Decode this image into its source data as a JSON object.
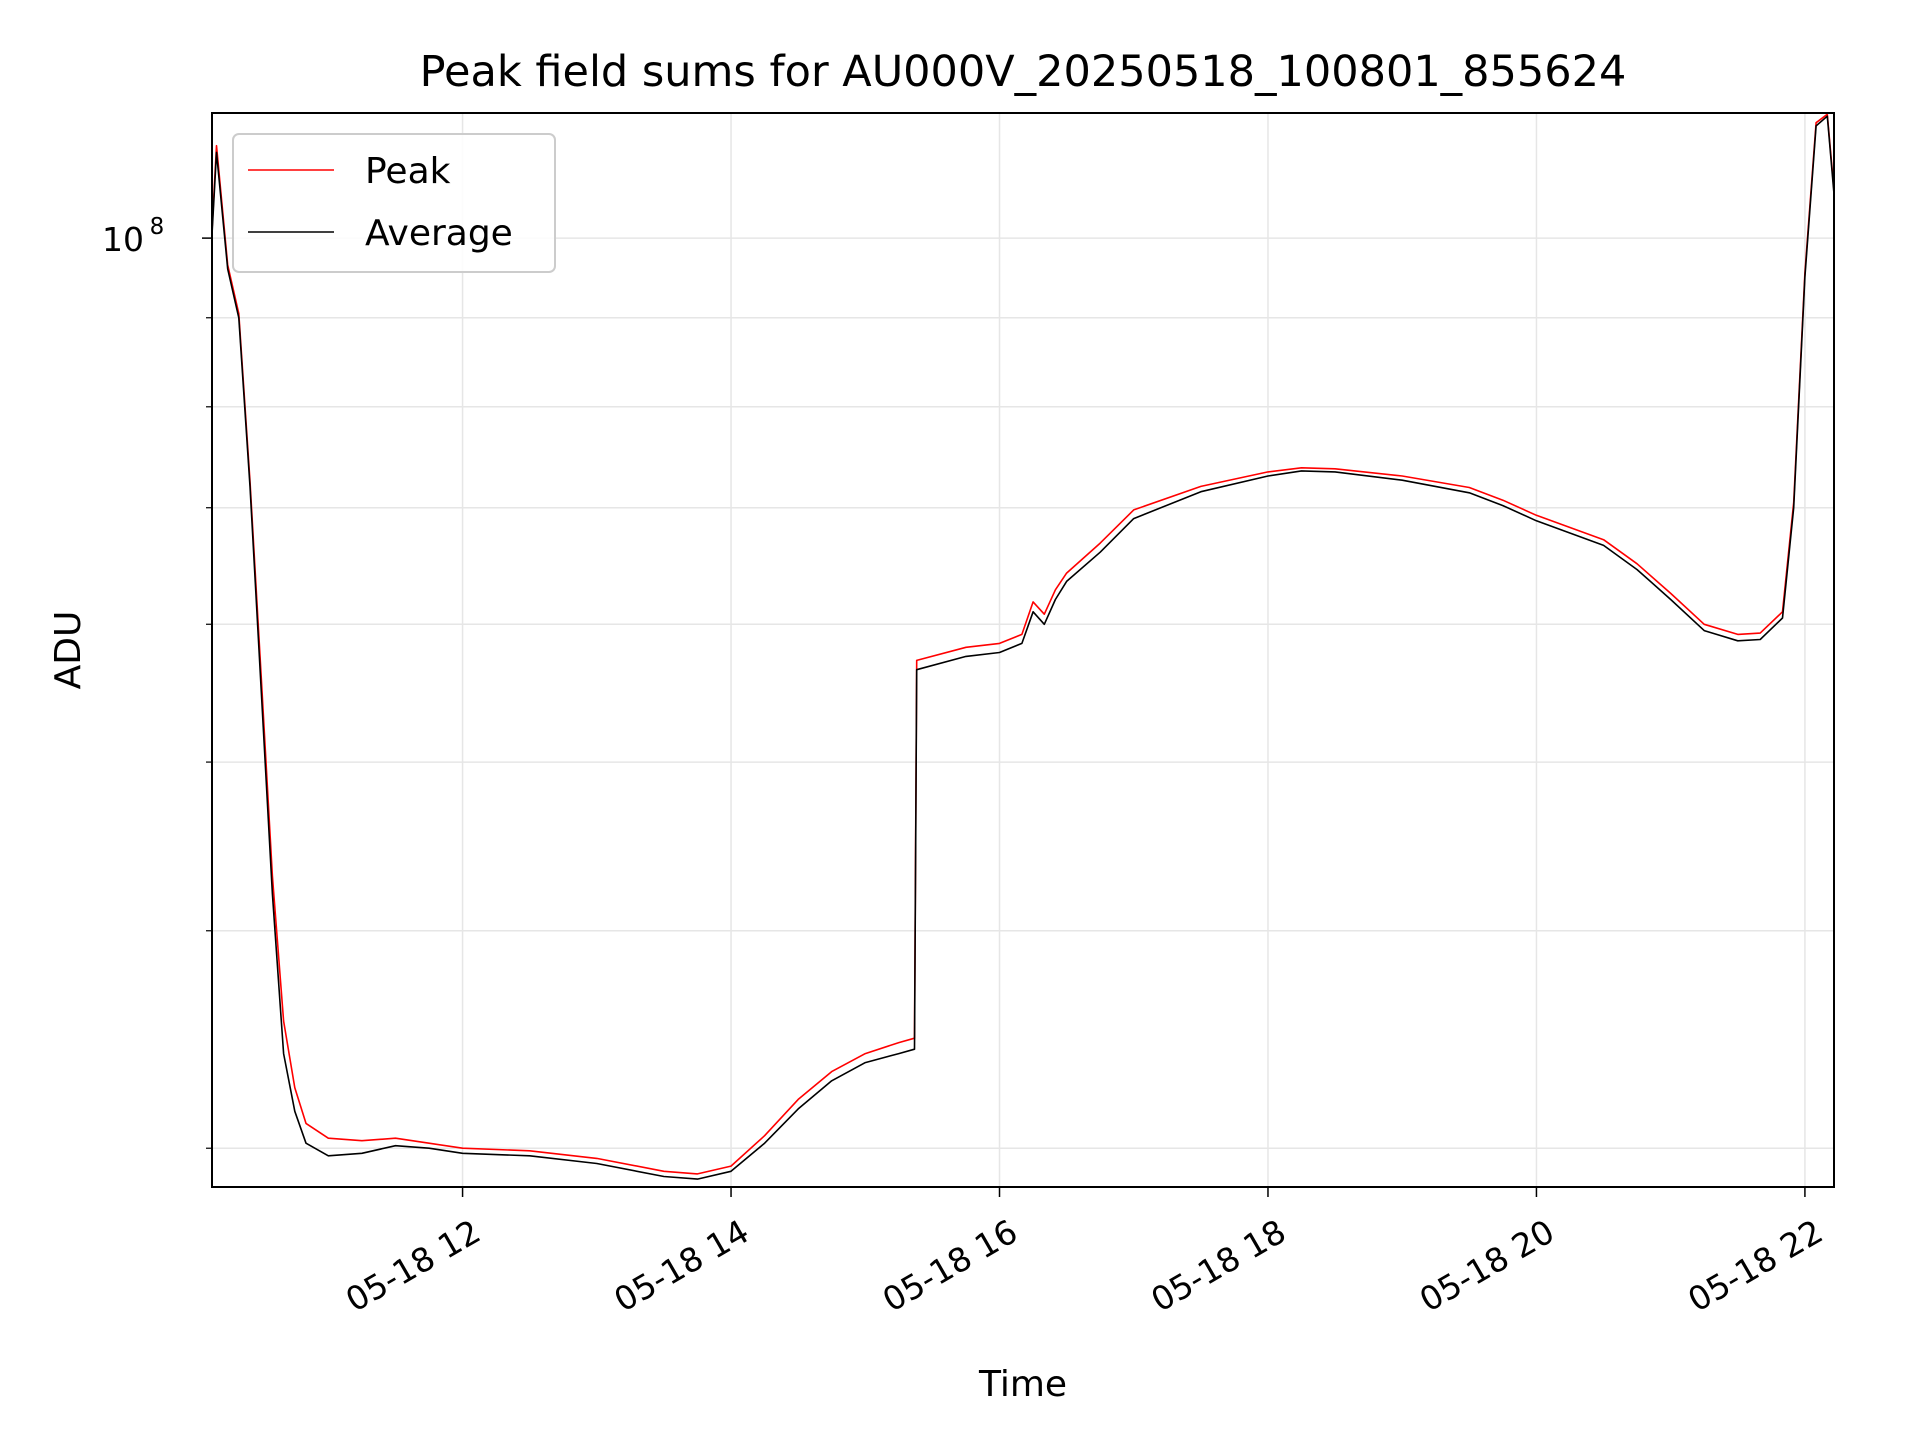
{
  "chart_data": {
    "type": "line",
    "title": "Peak field sums for AU000V_20250518_100801_855624",
    "xlabel": "Time",
    "ylabel": "ADU",
    "x_axis": {
      "kind": "datetime",
      "range": [
        "2025-05-18 10:08",
        "2025-05-18 22:13"
      ],
      "ticks": [
        {
          "value": "2025-05-18 12:00",
          "label": "05-18 12"
        },
        {
          "value": "2025-05-18 14:00",
          "label": "05-18 14"
        },
        {
          "value": "2025-05-18 16:00",
          "label": "05-18 16"
        },
        {
          "value": "2025-05-18 18:00",
          "label": "05-18 18"
        },
        {
          "value": "2025-05-18 20:00",
          "label": "05-18 20"
        },
        {
          "value": "2025-05-18 22:00",
          "label": "05-18 22"
        }
      ]
    },
    "y_axis": {
      "scale": "log",
      "range": [
        28500000,
        118000000
      ],
      "major_ticks": [
        {
          "value": 100000000,
          "label_base": "10",
          "label_exp": "8"
        }
      ],
      "minor_ticks": [
        30000000,
        40000000,
        50000000,
        60000000,
        70000000,
        80000000,
        90000000
      ]
    },
    "grid": true,
    "legend": {
      "position": "upper-left",
      "entries": [
        {
          "label": "Peak",
          "color": "#ff0000"
        },
        {
          "label": "Average",
          "color": "#000000"
        }
      ]
    },
    "series": [
      {
        "name": "Average",
        "color": "#000000",
        "points": [
          [
            "2025-05-18 10:08",
            100500000
          ],
          [
            "2025-05-18 10:10",
            112000000
          ],
          [
            "2025-05-18 10:15",
            96000000
          ],
          [
            "2025-05-18 10:20",
            90000000
          ],
          [
            "2025-05-18 10:25",
            72000000
          ],
          [
            "2025-05-18 10:30",
            55000000
          ],
          [
            "2025-05-18 10:35",
            42000000
          ],
          [
            "2025-05-18 10:40",
            34000000
          ],
          [
            "2025-05-18 10:45",
            31500000
          ],
          [
            "2025-05-18 10:50",
            30200000
          ],
          [
            "2025-05-18 11:00",
            29700000
          ],
          [
            "2025-05-18 11:15",
            29800000
          ],
          [
            "2025-05-18 11:30",
            30100000
          ],
          [
            "2025-05-18 11:45",
            30000000
          ],
          [
            "2025-05-18 12:00",
            29800000
          ],
          [
            "2025-05-18 12:30",
            29700000
          ],
          [
            "2025-05-18 13:00",
            29400000
          ],
          [
            "2025-05-18 13:30",
            28900000
          ],
          [
            "2025-05-18 13:45",
            28800000
          ],
          [
            "2025-05-18 14:00",
            29100000
          ],
          [
            "2025-05-18 14:15",
            30200000
          ],
          [
            "2025-05-18 14:30",
            31600000
          ],
          [
            "2025-05-18 14:45",
            32800000
          ],
          [
            "2025-05-18 15:00",
            33600000
          ],
          [
            "2025-05-18 15:15",
            34000000
          ],
          [
            "2025-05-18 15:22",
            34200000
          ],
          [
            "2025-05-18 15:23",
            56500000
          ],
          [
            "2025-05-18 15:45",
            57500000
          ],
          [
            "2025-05-18 16:00",
            57800000
          ],
          [
            "2025-05-18 16:10",
            58500000
          ],
          [
            "2025-05-18 16:15",
            61000000
          ],
          [
            "2025-05-18 16:20",
            60000000
          ],
          [
            "2025-05-18 16:25",
            62000000
          ],
          [
            "2025-05-18 16:30",
            63500000
          ],
          [
            "2025-05-18 16:45",
            66000000
          ],
          [
            "2025-05-18 17:00",
            69000000
          ],
          [
            "2025-05-18 17:30",
            71500000
          ],
          [
            "2025-05-18 18:00",
            73000000
          ],
          [
            "2025-05-18 18:15",
            73500000
          ],
          [
            "2025-05-18 18:30",
            73400000
          ],
          [
            "2025-05-18 19:00",
            72600000
          ],
          [
            "2025-05-18 19:30",
            71400000
          ],
          [
            "2025-05-18 19:45",
            70200000
          ],
          [
            "2025-05-18 20:00",
            68800000
          ],
          [
            "2025-05-18 20:30",
            66600000
          ],
          [
            "2025-05-18 20:45",
            64500000
          ],
          [
            "2025-05-18 21:00",
            62000000
          ],
          [
            "2025-05-18 21:15",
            59500000
          ],
          [
            "2025-05-18 21:30",
            58700000
          ],
          [
            "2025-05-18 21:40",
            58800000
          ],
          [
            "2025-05-18 21:50",
            60500000
          ],
          [
            "2025-05-18 21:55",
            70000000
          ],
          [
            "2025-05-18 22:00",
            95000000
          ],
          [
            "2025-05-18 22:05",
            116000000
          ],
          [
            "2025-05-18 22:10",
            117500000
          ],
          [
            "2025-05-18 22:13",
            106000000
          ]
        ]
      },
      {
        "name": "Peak",
        "color": "#ff0000",
        "points": [
          [
            "2025-05-18 10:08",
            101000000
          ],
          [
            "2025-05-18 10:10",
            113000000
          ],
          [
            "2025-05-18 10:15",
            96500000
          ],
          [
            "2025-05-18 10:20",
            90500000
          ],
          [
            "2025-05-18 10:25",
            72500000
          ],
          [
            "2025-05-18 10:30",
            56000000
          ],
          [
            "2025-05-18 10:35",
            43000000
          ],
          [
            "2025-05-18 10:40",
            35500000
          ],
          [
            "2025-05-18 10:45",
            32500000
          ],
          [
            "2025-05-18 10:50",
            31000000
          ],
          [
            "2025-05-18 11:00",
            30400000
          ],
          [
            "2025-05-18 11:15",
            30300000
          ],
          [
            "2025-05-18 11:30",
            30400000
          ],
          [
            "2025-05-18 11:45",
            30200000
          ],
          [
            "2025-05-18 12:00",
            30000000
          ],
          [
            "2025-05-18 12:30",
            29900000
          ],
          [
            "2025-05-18 13:00",
            29600000
          ],
          [
            "2025-05-18 13:30",
            29100000
          ],
          [
            "2025-05-18 13:45",
            29000000
          ],
          [
            "2025-05-18 14:00",
            29300000
          ],
          [
            "2025-05-18 14:15",
            30500000
          ],
          [
            "2025-05-18 14:30",
            32000000
          ],
          [
            "2025-05-18 14:45",
            33200000
          ],
          [
            "2025-05-18 15:00",
            34000000
          ],
          [
            "2025-05-18 15:15",
            34500000
          ],
          [
            "2025-05-18 15:22",
            34700000
          ],
          [
            "2025-05-18 15:23",
            57200000
          ],
          [
            "2025-05-18 15:45",
            58200000
          ],
          [
            "2025-05-18 16:00",
            58500000
          ],
          [
            "2025-05-18 16:10",
            59200000
          ],
          [
            "2025-05-18 16:15",
            61800000
          ],
          [
            "2025-05-18 16:20",
            60800000
          ],
          [
            "2025-05-18 16:25",
            62800000
          ],
          [
            "2025-05-18 16:30",
            64200000
          ],
          [
            "2025-05-18 16:45",
            66800000
          ],
          [
            "2025-05-18 17:00",
            69800000
          ],
          [
            "2025-05-18 17:30",
            72000000
          ],
          [
            "2025-05-18 18:00",
            73400000
          ],
          [
            "2025-05-18 18:15",
            73800000
          ],
          [
            "2025-05-18 18:30",
            73700000
          ],
          [
            "2025-05-18 19:00",
            73000000
          ],
          [
            "2025-05-18 19:30",
            71900000
          ],
          [
            "2025-05-18 19:45",
            70700000
          ],
          [
            "2025-05-18 20:00",
            69300000
          ],
          [
            "2025-05-18 20:30",
            67100000
          ],
          [
            "2025-05-18 20:45",
            65000000
          ],
          [
            "2025-05-18 21:00",
            62500000
          ],
          [
            "2025-05-18 21:15",
            60000000
          ],
          [
            "2025-05-18 21:30",
            59200000
          ],
          [
            "2025-05-18 21:40",
            59300000
          ],
          [
            "2025-05-18 21:50",
            61000000
          ],
          [
            "2025-05-18 21:55",
            70500000
          ],
          [
            "2025-05-18 22:00",
            95500000
          ],
          [
            "2025-05-18 22:05",
            116500000
          ],
          [
            "2025-05-18 22:10",
            117800000
          ],
          [
            "2025-05-18 22:13",
            106500000
          ]
        ]
      }
    ]
  }
}
